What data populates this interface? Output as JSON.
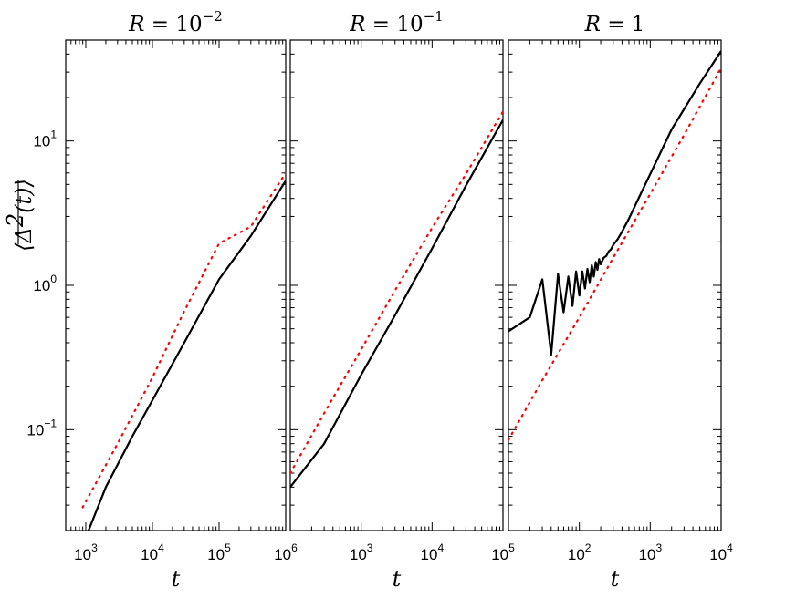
{
  "chart_data": {
    "type": "line",
    "y_axis": {
      "label_parts": [
        "⟨",
        "Δ",
        "2",
        "(t)",
        "⟩"
      ],
      "scale": "log",
      "ylim": [
        0.02,
        50
      ],
      "ticks": [
        {
          "value": 0.1,
          "base": "10",
          "exp": "−1"
        },
        {
          "value": 1,
          "base": "10",
          "exp": "0"
        },
        {
          "value": 10,
          "base": "10",
          "exp": "1"
        }
      ]
    },
    "panels": [
      {
        "title_prefix": "R",
        "title_eq": " = ",
        "title_base": "10",
        "title_exp": "−2",
        "xlabel": "t",
        "x_scale": "log",
        "xlim": [
          500,
          1000000
        ],
        "x_ticks": [
          {
            "value": 1000,
            "base": "10",
            "exp": "3"
          },
          {
            "value": 10000,
            "base": "10",
            "exp": "4"
          },
          {
            "value": 100000,
            "base": "10",
            "exp": "5"
          },
          {
            "value": 1000000,
            "base": "10",
            "exp": "6"
          }
        ],
        "series": [
          {
            "style": "solid-black",
            "x": [
              1100,
              2000,
              5000,
              10000,
              30000,
              100000,
              300000,
              1000000
            ],
            "y": [
              0.02,
              0.04,
              0.09,
              0.16,
              0.4,
              1.1,
              2.2,
              5.3
            ]
          },
          {
            "style": "dotted-red",
            "x": [
              900,
              3000,
              10000,
              30000,
              100000,
              300000,
              1000000
            ],
            "y": [
              0.029,
              0.08,
              0.23,
              0.66,
              1.95,
              2.55,
              6.0
            ]
          }
        ]
      },
      {
        "title_prefix": "R",
        "title_eq": " = ",
        "title_base": "10",
        "title_exp": "−1",
        "xlabel": "t",
        "x_scale": "log",
        "xlim": [
          100,
          100000
        ],
        "x_ticks": [
          {
            "value": 1000,
            "base": "10",
            "exp": "3"
          },
          {
            "value": 10000,
            "base": "10",
            "exp": "4"
          },
          {
            "value": 100000,
            "base": "10",
            "exp": "5"
          }
        ],
        "series": [
          {
            "style": "solid-black",
            "x": [
              100,
              300,
              1000,
              3000,
              10000,
              30000,
              100000
            ],
            "y": [
              0.04,
              0.08,
              0.24,
              0.62,
              1.8,
              4.9,
              14
            ]
          },
          {
            "style": "dotted-red",
            "x": [
              100,
              300,
              1000,
              3000,
              10000,
              30000,
              100000
            ],
            "y": [
              0.05,
              0.13,
              0.36,
              0.92,
              2.5,
              5.9,
              16
            ]
          }
        ]
      },
      {
        "title_prefix": "R",
        "title_eq": " = ",
        "title_base": "1",
        "title_exp": "",
        "xlabel": "t",
        "x_scale": "log",
        "xlim": [
          10,
          10000
        ],
        "x_ticks": [
          {
            "value": 100,
            "base": "10",
            "exp": "2"
          },
          {
            "value": 1000,
            "base": "10",
            "exp": "3"
          },
          {
            "value": 10000,
            "base": "10",
            "exp": "4"
          }
        ],
        "series": [
          {
            "style": "solid-black",
            "x": [
              10,
              20,
              30,
              40,
              50,
              60,
              70,
              80,
              90,
              100,
              110,
              120,
              130,
              140,
              150,
              160,
              170,
              180,
              190,
              200,
              220,
              240,
              260,
              280,
              300,
              350,
              400,
              500,
              700,
              1000,
              2000,
              5000,
              10000
            ],
            "y": [
              0.48,
              0.6,
              1.1,
              0.33,
              1.2,
              0.65,
              1.15,
              0.72,
              1.25,
              0.85,
              1.25,
              0.95,
              1.3,
              1.05,
              1.38,
              1.15,
              1.45,
              1.28,
              1.52,
              1.4,
              1.55,
              1.6,
              1.72,
              1.78,
              1.9,
              2.1,
              2.35,
              2.9,
              4.1,
              5.9,
              12,
              25,
              42
            ]
          },
          {
            "style": "dotted-red",
            "x": [
              10,
              30,
              100,
              300,
              1000,
              3000,
              10000
            ],
            "y": [
              0.085,
              0.22,
              0.6,
              1.55,
              4.3,
              11,
              32
            ]
          }
        ]
      }
    ]
  }
}
